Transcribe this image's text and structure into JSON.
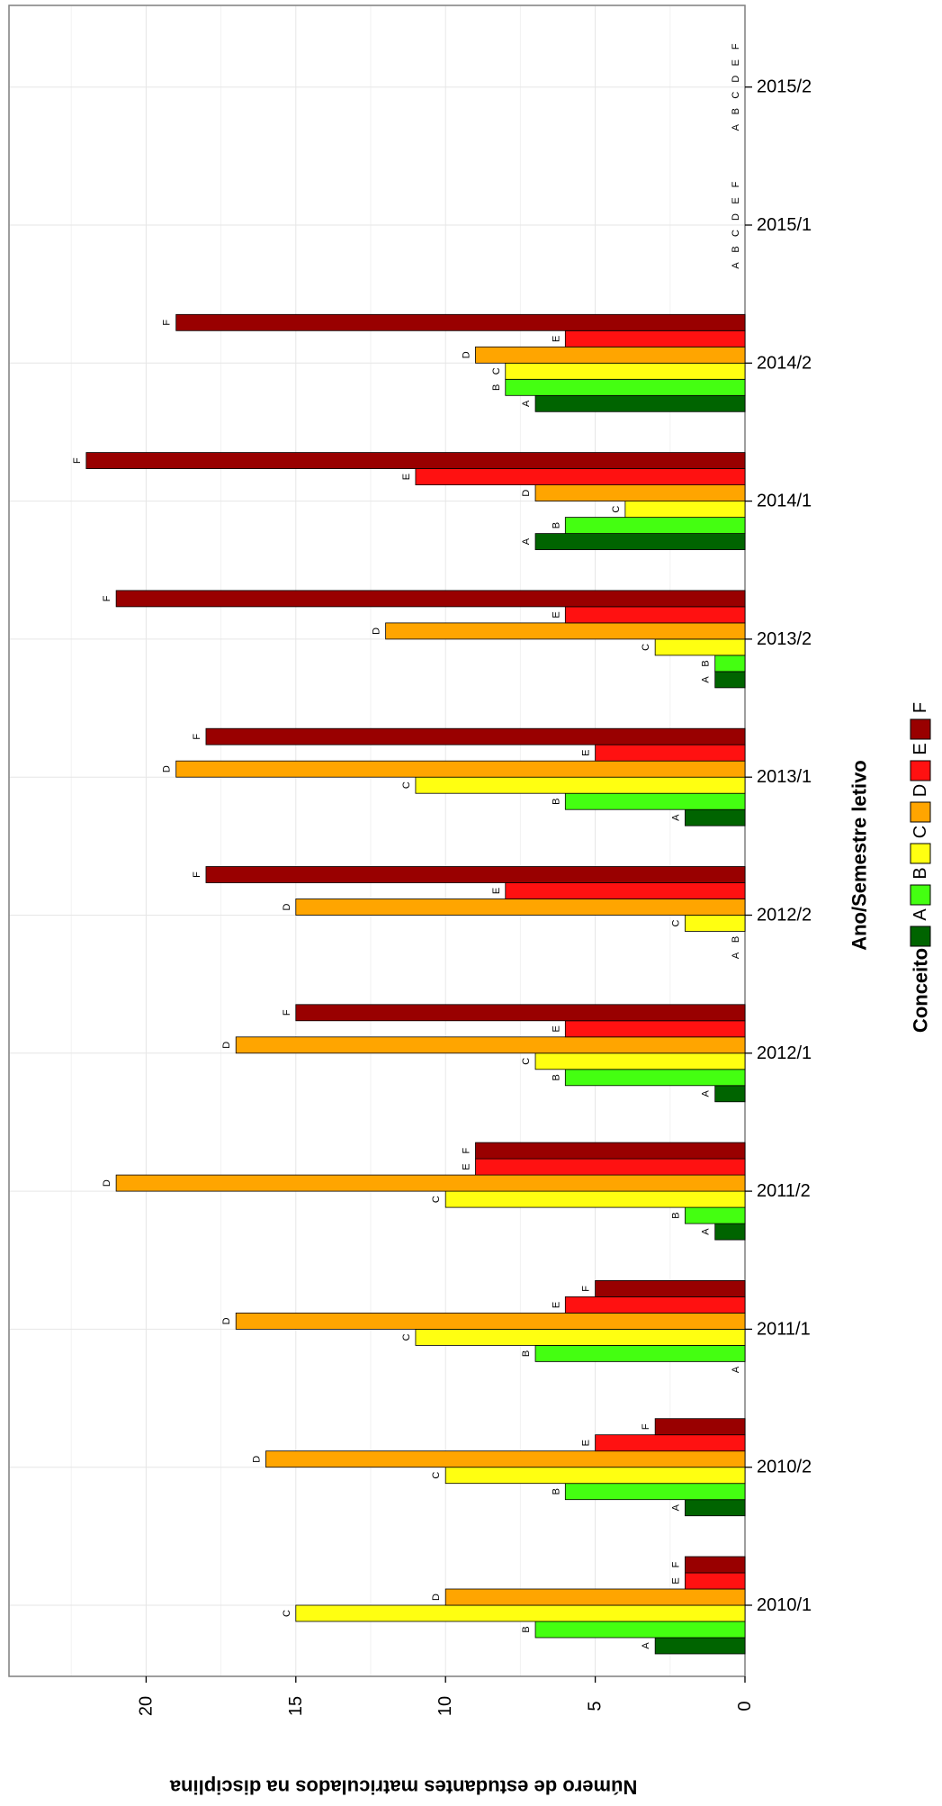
{
  "chart_data": {
    "type": "bar",
    "orientation": "rotated",
    "xlabel": "Ano/Semestre letivo",
    "ylabel": "Número de estudantes matriculados na disciplina",
    "ylim": [
      0,
      24
    ],
    "y_ticks": [
      0,
      5,
      10,
      15,
      20
    ],
    "grid": true,
    "legend": {
      "title": "Conceito",
      "position": "bottom"
    },
    "categories": [
      "2010/1",
      "2010/2",
      "2011/1",
      "2011/2",
      "2012/1",
      "2012/2",
      "2013/1",
      "2013/2",
      "2014/1",
      "2014/2",
      "2015/1",
      "2015/2"
    ],
    "series": [
      {
        "name": "A",
        "color": "#006400",
        "values": [
          3,
          2,
          0,
          1,
          1,
          0,
          2,
          1,
          7,
          7,
          0,
          0
        ]
      },
      {
        "name": "B",
        "color": "#44ff11",
        "values": [
          7,
          6,
          7,
          2,
          6,
          0,
          6,
          1,
          6,
          8,
          0,
          0
        ]
      },
      {
        "name": "C",
        "color": "#ffff11",
        "values": [
          15,
          10,
          11,
          10,
          7,
          2,
          11,
          3,
          4,
          8,
          0,
          0
        ]
      },
      {
        "name": "D",
        "color": "#ffa500",
        "values": [
          10,
          16,
          17,
          21,
          17,
          15,
          19,
          12,
          7,
          9,
          0,
          0
        ]
      },
      {
        "name": "E",
        "color": "#ff1111",
        "values": [
          2,
          5,
          6,
          9,
          6,
          8,
          5,
          6,
          11,
          6,
          0,
          0
        ]
      },
      {
        "name": "F",
        "color": "#990000",
        "values": [
          2,
          3,
          5,
          9,
          15,
          18,
          18,
          21,
          22,
          19,
          0,
          0
        ]
      }
    ]
  }
}
